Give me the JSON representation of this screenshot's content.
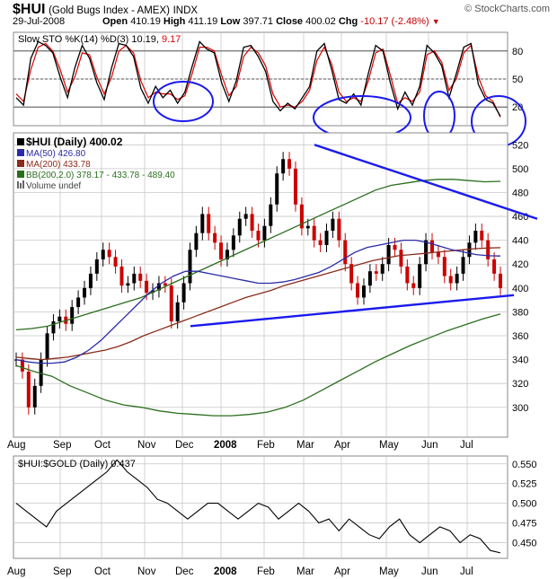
{
  "header": {
    "symbol": "$HUI",
    "subtitle": "(Gold Bugs Index - AMEX)",
    "exchange": "INDX",
    "date": "29-Jul-2008",
    "open_label": "Open",
    "open": "410.19",
    "high_label": "High",
    "high": "411.19",
    "low_label": "Low",
    "low": "397.71",
    "close_label": "Close",
    "close": "400.02",
    "chg_label": "Chg",
    "chg": "-10.17 (-2.48%)",
    "brand": "© StockCharts.com"
  },
  "colors": {
    "price": "#000000",
    "down": "#cc0000",
    "ma50": "#2a2aa8",
    "ma200": "#8b2b1a",
    "bb": "#2a6e1e",
    "trendline": "#1a1aee",
    "stoch_k": "#000000",
    "stoch_d": "#dd0000",
    "grid": "#c8c8c8"
  },
  "chart_data": [
    {
      "type": "line",
      "panel": "stochastic",
      "legend": {
        "prefix": "Slow STO %K(14) %D(3)",
        "k_value": "10.19",
        "d_value": "9.17"
      },
      "ylim": [
        0,
        100
      ],
      "yticks": [
        80,
        50,
        20
      ],
      "months": [
        "Aug",
        "Sep",
        "Oct",
        "Nov",
        "Dec",
        "2008",
        "Feb",
        "Mar",
        "Apr",
        "May",
        "Jun",
        "Jul"
      ],
      "series": [
        {
          "name": "%K",
          "values": [
            30,
            22,
            72,
            90,
            86,
            78,
            52,
            30,
            62,
            86,
            72,
            46,
            28,
            62,
            88,
            86,
            74,
            40,
            24,
            42,
            30,
            38,
            24,
            36,
            64,
            90,
            82,
            78,
            46,
            26,
            48,
            84,
            86,
            74,
            58,
            26,
            16,
            24,
            18,
            30,
            42,
            80,
            88,
            60,
            28,
            24,
            34,
            22,
            56,
            86,
            80,
            46,
            18,
            36,
            22,
            42,
            86,
            78,
            64,
            30,
            56,
            84,
            88,
            44,
            28,
            24,
            10
          ]
        },
        {
          "name": "%D",
          "values": [
            34,
            26,
            60,
            84,
            88,
            80,
            60,
            36,
            52,
            78,
            76,
            52,
            34,
            52,
            80,
            86,
            78,
            48,
            30,
            36,
            34,
            34,
            28,
            32,
            56,
            84,
            84,
            80,
            54,
            32,
            42,
            74,
            84,
            78,
            64,
            34,
            20,
            22,
            20,
            26,
            38,
            70,
            84,
            66,
            36,
            26,
            30,
            26,
            48,
            78,
            82,
            54,
            24,
            30,
            26,
            36,
            76,
            80,
            68,
            38,
            50,
            78,
            86,
            52,
            32,
            26,
            9.17
          ]
        }
      ]
    },
    {
      "type": "line",
      "panel": "price",
      "legend": [
        {
          "label": "$HUI (Daily) 400.02"
        },
        {
          "label": "MA(50) 426.80"
        },
        {
          "label": "MA(200) 433.78"
        },
        {
          "label": "BB(200,2.0) 378.17 - 433.78 - 489.40"
        },
        {
          "label": "Volume undef"
        }
      ],
      "ylim": [
        275,
        530
      ],
      "yticks": [
        520,
        500,
        480,
        460,
        440,
        420,
        400,
        380,
        360,
        340,
        320,
        300
      ],
      "months": [
        "Aug",
        "Sep",
        "Oct",
        "Nov",
        "Dec",
        "2008",
        "Feb",
        "Mar",
        "Apr",
        "May",
        "Jun",
        "Jul"
      ],
      "series": [
        {
          "name": "$HUI (Daily)",
          "values": [
            340,
            330,
            300,
            318,
            340,
            362,
            372,
            376,
            370,
            384,
            392,
            400,
            412,
            424,
            432,
            426,
            418,
            402,
            404,
            412,
            406,
            396,
            398,
            404,
            402,
            372,
            388,
            404,
            432,
            446,
            462,
            446,
            438,
            424,
            432,
            444,
            458,
            462,
            448,
            440,
            452,
            470,
            496,
            508,
            500,
            470,
            450,
            452,
            440,
            436,
            448,
            458,
            440,
            420,
            404,
            392,
            402,
            414,
            412,
            420,
            436,
            432,
            418,
            404,
            400,
            420,
            440,
            430,
            426,
            410,
            404,
            412,
            426,
            438,
            448,
            440,
            424,
            412,
            400
          ]
        },
        {
          "name": "MA(50)",
          "values": [
            340,
            338,
            337,
            337,
            338,
            342,
            348,
            356,
            366,
            376,
            386,
            396,
            404,
            410,
            414,
            414,
            412,
            410,
            408,
            406,
            404,
            404,
            405,
            407,
            410,
            413,
            418,
            424,
            430,
            434,
            436,
            438,
            440,
            440,
            438,
            435,
            432,
            430,
            428,
            427,
            426.8
          ]
        },
        {
          "name": "MA(200)",
          "values": [
            342,
            341,
            340,
            341,
            342,
            344,
            346,
            348,
            351,
            355,
            360,
            364,
            368,
            372,
            376,
            380,
            384,
            388,
            392,
            395,
            398,
            402,
            405,
            408,
            411,
            414,
            417,
            420,
            423,
            425,
            427,
            428,
            429,
            430,
            431,
            432,
            433,
            433.5,
            433.78
          ]
        },
        {
          "name": "BB upper",
          "values": [
            365,
            366,
            368,
            372,
            376,
            380,
            384,
            388,
            392,
            398,
            404,
            410,
            416,
            422,
            428,
            434,
            440,
            446,
            452,
            458,
            464,
            470,
            476,
            482,
            486,
            488,
            490,
            491,
            491,
            490,
            489,
            489.4
          ]
        },
        {
          "name": "BB lower",
          "values": [
            335,
            330,
            326,
            318,
            312,
            306,
            302,
            300,
            297,
            295,
            294,
            293,
            293,
            294,
            296,
            300,
            306,
            314,
            322,
            330,
            338,
            345,
            352,
            358,
            364,
            369,
            374,
            378.17
          ]
        }
      ],
      "trendlines": [
        {
          "from": {
            "x": "Dec",
            "y": 368
          },
          "to": {
            "x": "Jul end",
            "y": 394
          }
        },
        {
          "from": {
            "x": "Mar",
            "y": 520
          },
          "to": {
            "x": "Jul end",
            "y": 458
          }
        }
      ]
    },
    {
      "type": "line",
      "panel": "ratio",
      "legend": {
        "label": "$HUI:$GOLD (Daily) 0.437"
      },
      "ylim": [
        0.43,
        0.56
      ],
      "yticks": [
        0.55,
        0.525,
        0.5,
        0.475,
        0.45
      ],
      "ytick_labels": [
        "0.550",
        "0.525",
        "0.500",
        "0.475",
        "0.450"
      ],
      "months": [
        "Aug",
        "Sep",
        "Oct",
        "Nov",
        "Dec",
        "2008",
        "Feb",
        "Mar",
        "Apr",
        "May",
        "Jun",
        "Jul"
      ],
      "series": [
        {
          "name": "$HUI:$GOLD",
          "values": [
            0.5,
            0.49,
            0.48,
            0.47,
            0.49,
            0.5,
            0.51,
            0.52,
            0.53,
            0.54,
            0.555,
            0.54,
            0.53,
            0.52,
            0.505,
            0.5,
            0.49,
            0.48,
            0.49,
            0.5,
            0.5,
            0.49,
            0.48,
            0.49,
            0.5,
            0.495,
            0.48,
            0.49,
            0.5,
            0.49,
            0.475,
            0.48,
            0.465,
            0.48,
            0.47,
            0.46,
            0.455,
            0.47,
            0.48,
            0.46,
            0.45,
            0.46,
            0.47,
            0.465,
            0.45,
            0.46,
            0.455,
            0.44,
            0.437
          ]
        }
      ]
    }
  ]
}
